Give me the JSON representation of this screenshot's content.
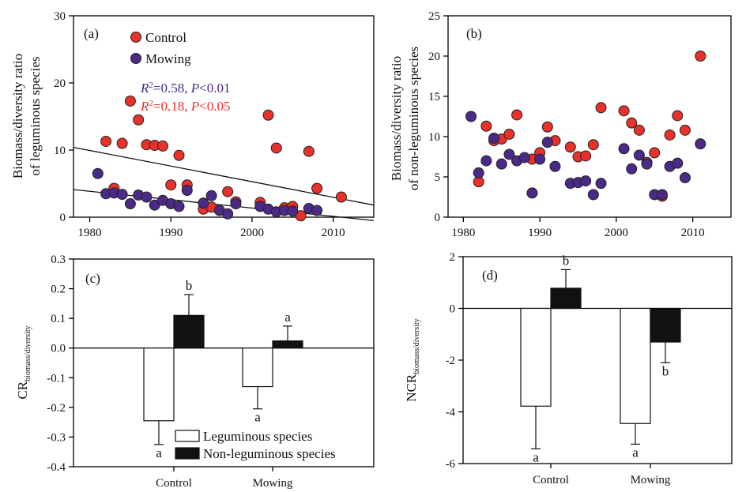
{
  "chart_data": [
    {
      "panel": "(a)",
      "type": "scatter",
      "ylabel_line1": "Biomass/diversity ratio",
      "ylabel_line2": "of leguminous species",
      "xlim": [
        1978,
        2015
      ],
      "ylim": [
        0,
        30
      ],
      "xticks": [
        "1980",
        "1990",
        "2000",
        "2010"
      ],
      "yticks": [
        "0",
        "10",
        "20",
        "30"
      ],
      "legend": [
        "Control",
        "Mowing"
      ],
      "legend_position": "top-left",
      "colors": {
        "Control": "#e8312a",
        "Mowing": "#4a2a86"
      },
      "annotations": [
        {
          "r": "R",
          "sup": "2",
          "rest": "=0.58, ",
          "p": "P",
          "tail": "<0.01",
          "color": "#4a2a86"
        },
        {
          "r": "R",
          "sup": "2",
          "rest": "=0.18, ",
          "p": "P",
          "tail": "<0.05",
          "color": "#e8312a"
        }
      ],
      "series": [
        {
          "name": "Control",
          "points": [
            [
              1982,
              11.3
            ],
            [
              1983,
              4.3
            ],
            [
              1984,
              11.0
            ],
            [
              1985,
              17.3
            ],
            [
              1986,
              14.5
            ],
            [
              1987,
              10.8
            ],
            [
              1988,
              10.7
            ],
            [
              1989,
              10.6
            ],
            [
              1990,
              4.8
            ],
            [
              1991,
              9.2
            ],
            [
              1992,
              4.8
            ],
            [
              1994,
              1.2
            ],
            [
              1995,
              1.5
            ],
            [
              1997,
              3.8
            ],
            [
              1998,
              2.3
            ],
            [
              2001,
              2.2
            ],
            [
              2002,
              15.2
            ],
            [
              2003,
              10.3
            ],
            [
              2004,
              1.4
            ],
            [
              2005,
              1.6
            ],
            [
              2006,
              0.2
            ],
            [
              2007,
              9.8
            ],
            [
              2008,
              4.3
            ],
            [
              2011,
              3.0
            ]
          ],
          "trend": {
            "x": [
              1978,
              2015
            ],
            "y": [
              10.4,
              1.8
            ]
          }
        },
        {
          "name": "Mowing",
          "points": [
            [
              1981,
              6.5
            ],
            [
              1982,
              3.5
            ],
            [
              1983,
              3.6
            ],
            [
              1984,
              3.4
            ],
            [
              1985,
              2.0
            ],
            [
              1986,
              3.3
            ],
            [
              1987,
              3.0
            ],
            [
              1988,
              1.8
            ],
            [
              1989,
              2.5
            ],
            [
              1990,
              2.0
            ],
            [
              1991,
              1.6
            ],
            [
              1992,
              4.0
            ],
            [
              1994,
              2.1
            ],
            [
              1995,
              3.2
            ],
            [
              1996,
              1.0
            ],
            [
              1997,
              0.5
            ],
            [
              1998,
              2.0
            ],
            [
              2001,
              1.6
            ],
            [
              2002,
              1.2
            ],
            [
              2003,
              0.8
            ],
            [
              2004,
              1.0
            ],
            [
              2005,
              0.9
            ],
            [
              2007,
              1.3
            ],
            [
              2008,
              1.0
            ]
          ],
          "trend": {
            "x": [
              1978,
              2015
            ],
            "y": [
              4.1,
              -0.5
            ]
          }
        }
      ]
    },
    {
      "panel": "(b)",
      "type": "scatter",
      "ylabel_line1": "Biomass/diversity ratio",
      "ylabel_line2": "of non-leguminous species",
      "xlim": [
        1978,
        2015
      ],
      "ylim": [
        0,
        25
      ],
      "xticks": [
        "1980",
        "1990",
        "2000",
        "2010"
      ],
      "yticks": [
        "0",
        "5",
        "10",
        "15",
        "20",
        "25"
      ],
      "colors": {
        "Control": "#e8312a",
        "Mowing": "#4a2a86"
      },
      "series": [
        {
          "name": "Control",
          "points": [
            [
              1982,
              4.4
            ],
            [
              1983,
              11.3
            ],
            [
              1984,
              9.5
            ],
            [
              1985,
              9.7
            ],
            [
              1986,
              10.3
            ],
            [
              1987,
              12.7
            ],
            [
              1989,
              7.2
            ],
            [
              1990,
              8.0
            ],
            [
              1991,
              11.2
            ],
            [
              1992,
              9.5
            ],
            [
              1994,
              8.7
            ],
            [
              1995,
              7.5
            ],
            [
              1996,
              7.6
            ],
            [
              1997,
              9.0
            ],
            [
              1998,
              13.6
            ],
            [
              2001,
              13.2
            ],
            [
              2002,
              11.7
            ],
            [
              2003,
              10.8
            ],
            [
              2004,
              6.8
            ],
            [
              2005,
              8.0
            ],
            [
              2006,
              2.6
            ],
            [
              2007,
              10.2
            ],
            [
              2008,
              12.6
            ],
            [
              2009,
              10.8
            ],
            [
              2011,
              20.0
            ]
          ]
        },
        {
          "name": "Mowing",
          "points": [
            [
              1981,
              12.5
            ],
            [
              1982,
              5.5
            ],
            [
              1983,
              7.0
            ],
            [
              1984,
              9.8
            ],
            [
              1985,
              6.6
            ],
            [
              1986,
              7.8
            ],
            [
              1987,
              7.0
            ],
            [
              1988,
              7.4
            ],
            [
              1989,
              3.0
            ],
            [
              1990,
              7.2
            ],
            [
              1991,
              9.3
            ],
            [
              1992,
              6.3
            ],
            [
              1994,
              4.2
            ],
            [
              1995,
              4.3
            ],
            [
              1996,
              4.5
            ],
            [
              1997,
              2.8
            ],
            [
              1998,
              4.2
            ],
            [
              2001,
              8.5
            ],
            [
              2002,
              6.0
            ],
            [
              2003,
              7.7
            ],
            [
              2004,
              6.6
            ],
            [
              2005,
              2.8
            ],
            [
              2006,
              2.8
            ],
            [
              2007,
              6.3
            ],
            [
              2008,
              6.7
            ],
            [
              2009,
              4.9
            ],
            [
              2011,
              9.1
            ]
          ]
        }
      ]
    },
    {
      "panel": "(c)",
      "type": "bar",
      "ylabel_main": "CR",
      "ylabel_sub": "biomass/diversity",
      "categories": [
        "Control",
        "Mowing"
      ],
      "ylim": [
        -0.4,
        0.3
      ],
      "yticks": [
        "0.3",
        "0.2",
        "0.1",
        "0.0",
        "-0.1",
        "-0.2",
        "-0.3",
        "-0.4"
      ],
      "legend": [
        "Leguminous species",
        "Non-leguminous species"
      ],
      "legend_position": "bottom-left",
      "series": [
        {
          "name": "Leguminous species",
          "color": "#ffffff",
          "values": [
            -0.245,
            -0.13
          ],
          "errors": [
            0.08,
            0.075
          ],
          "letters": [
            "a",
            "a"
          ]
        },
        {
          "name": "Non-leguminous species",
          "color": "#111111",
          "values": [
            0.11,
            0.024
          ],
          "errors": [
            0.07,
            0.05
          ],
          "letters": [
            "b",
            "a"
          ]
        }
      ]
    },
    {
      "panel": "(d)",
      "type": "bar",
      "ylabel_main": "NCR",
      "ylabel_sub": "biomass/diversity",
      "categories": [
        "Control",
        "Mowing"
      ],
      "ylim": [
        -6,
        2
      ],
      "yticks": [
        "2",
        "0",
        "-2",
        "-4",
        "-6"
      ],
      "series": [
        {
          "name": "Leguminous species",
          "color": "#ffffff",
          "values": [
            -3.78,
            -4.45
          ],
          "errors": [
            1.65,
            0.8
          ],
          "letters": [
            "a",
            "a"
          ]
        },
        {
          "name": "Non-leguminous species",
          "color": "#111111",
          "values": [
            0.78,
            -1.3
          ],
          "errors": [
            0.72,
            0.8
          ],
          "letters": [
            "b",
            "b"
          ]
        }
      ]
    }
  ]
}
